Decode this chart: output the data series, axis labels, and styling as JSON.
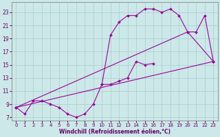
{
  "xlabel": "Windchill (Refroidissement éolien,°C)",
  "bg_color": "#cce8e8",
  "line_color": "#990099",
  "grid_color": "#aacccc",
  "xlim": [
    -0.5,
    23.5
  ],
  "ylim": [
    6.5,
    24.5
  ],
  "xticks": [
    0,
    1,
    2,
    3,
    4,
    5,
    6,
    7,
    8,
    9,
    10,
    11,
    12,
    13,
    14,
    15,
    16,
    17,
    18,
    19,
    20,
    21,
    22,
    23
  ],
  "yticks": [
    7,
    9,
    11,
    13,
    15,
    17,
    19,
    21,
    23
  ],
  "series": [
    {
      "x": [
        0,
        1,
        2,
        3,
        4,
        5,
        6,
        7,
        8,
        9,
        10,
        11,
        12,
        13,
        14,
        15,
        16
      ],
      "y": [
        8.5,
        7.5,
        9.5,
        9.5,
        9.0,
        8.5,
        7.5,
        7.0,
        7.5,
        9.0,
        12.0,
        12.0,
        12.5,
        13.0,
        15.5,
        15.0,
        15.2
      ]
    },
    {
      "x": [
        0,
        23
      ],
      "y": [
        8.5,
        15.5
      ]
    },
    {
      "x": [
        0,
        20,
        23
      ],
      "y": [
        8.5,
        20.0,
        15.5
      ]
    },
    {
      "x": [
        10,
        11,
        12,
        13,
        14,
        15,
        16,
        17,
        18,
        19,
        20,
        21,
        22,
        23
      ],
      "y": [
        12.0,
        19.5,
        21.5,
        22.5,
        22.5,
        23.5,
        23.5,
        23.0,
        23.5,
        22.5,
        20.0,
        20.0,
        22.5,
        15.5
      ]
    }
  ]
}
